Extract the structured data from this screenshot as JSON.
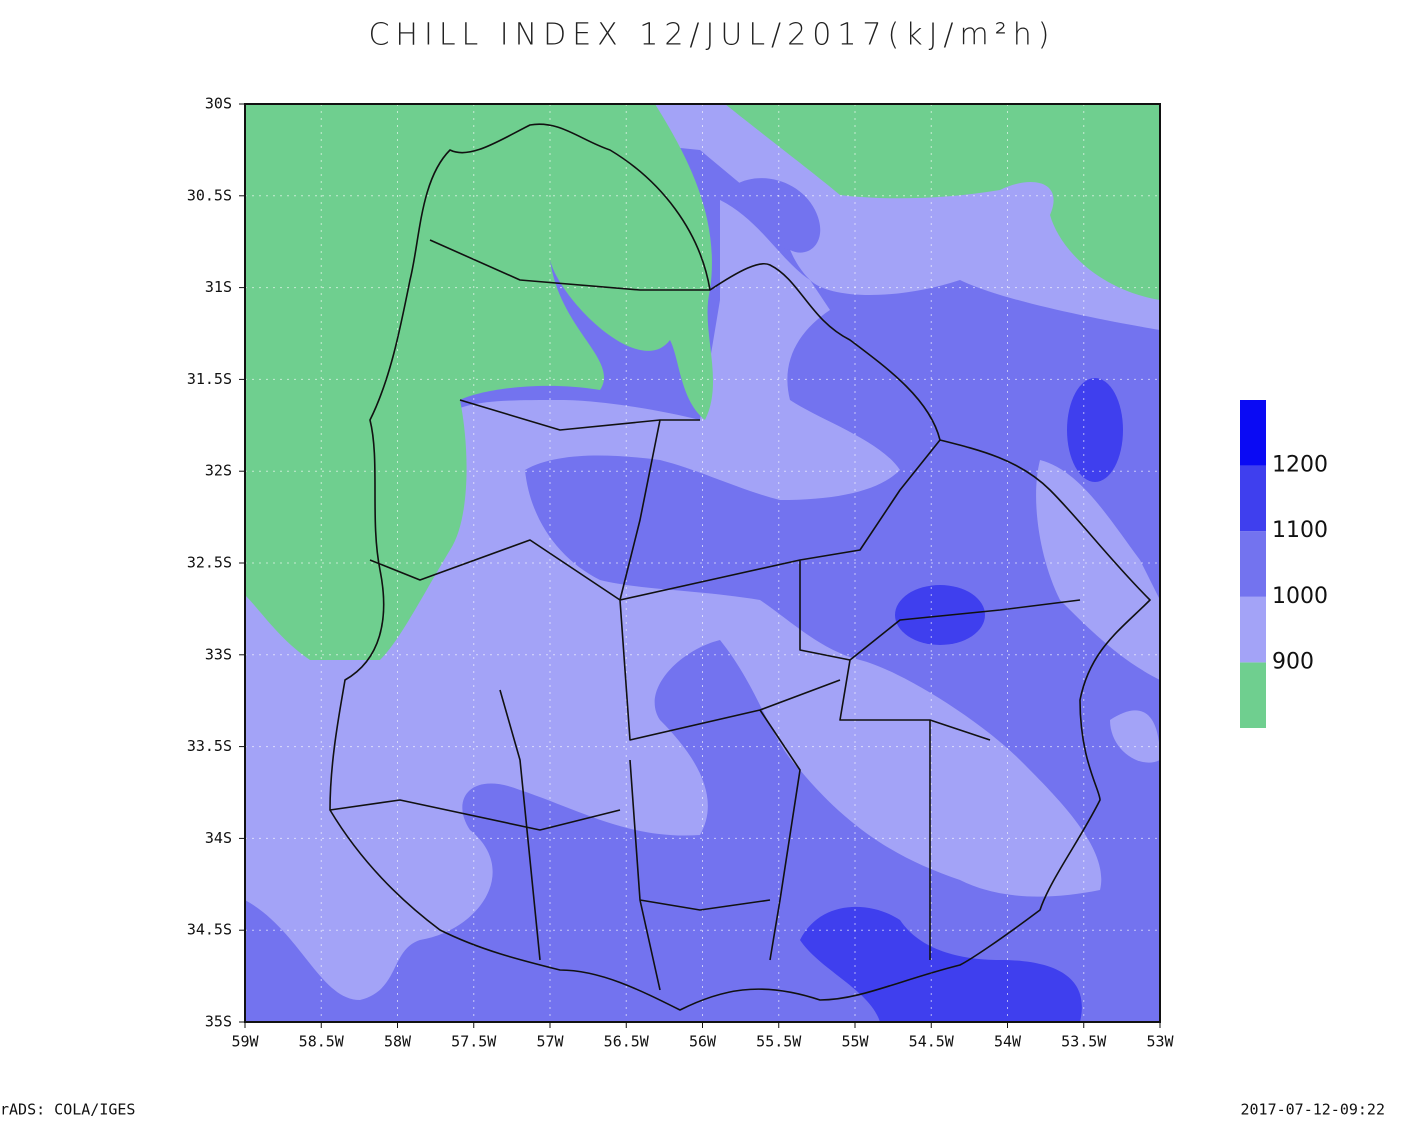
{
  "title": "CHILL INDEX 12/JUL/2017(kJ/m²h)",
  "map": {
    "lat_ticks": [
      "30S",
      "30.5S",
      "31S",
      "31.5S",
      "32S",
      "32.5S",
      "33S",
      "33.5S",
      "34S",
      "34.5S",
      "35S"
    ],
    "lon_ticks": [
      "59W",
      "58.5W",
      "58W",
      "57.5W",
      "57W",
      "56.5W",
      "56W",
      "55.5W",
      "55W",
      "54.5W",
      "54W",
      "53.5W",
      "53W"
    ]
  },
  "colorbar": {
    "levels": [
      900,
      1000,
      1100,
      1200
    ],
    "colors": [
      "#6fcf8f",
      "#a3a3f7",
      "#7373ef",
      "#3f3fee",
      "#0a0af4"
    ]
  },
  "footer": {
    "left": "rADS: COLA/IGES",
    "right": "2017-07-12-09:22"
  }
}
